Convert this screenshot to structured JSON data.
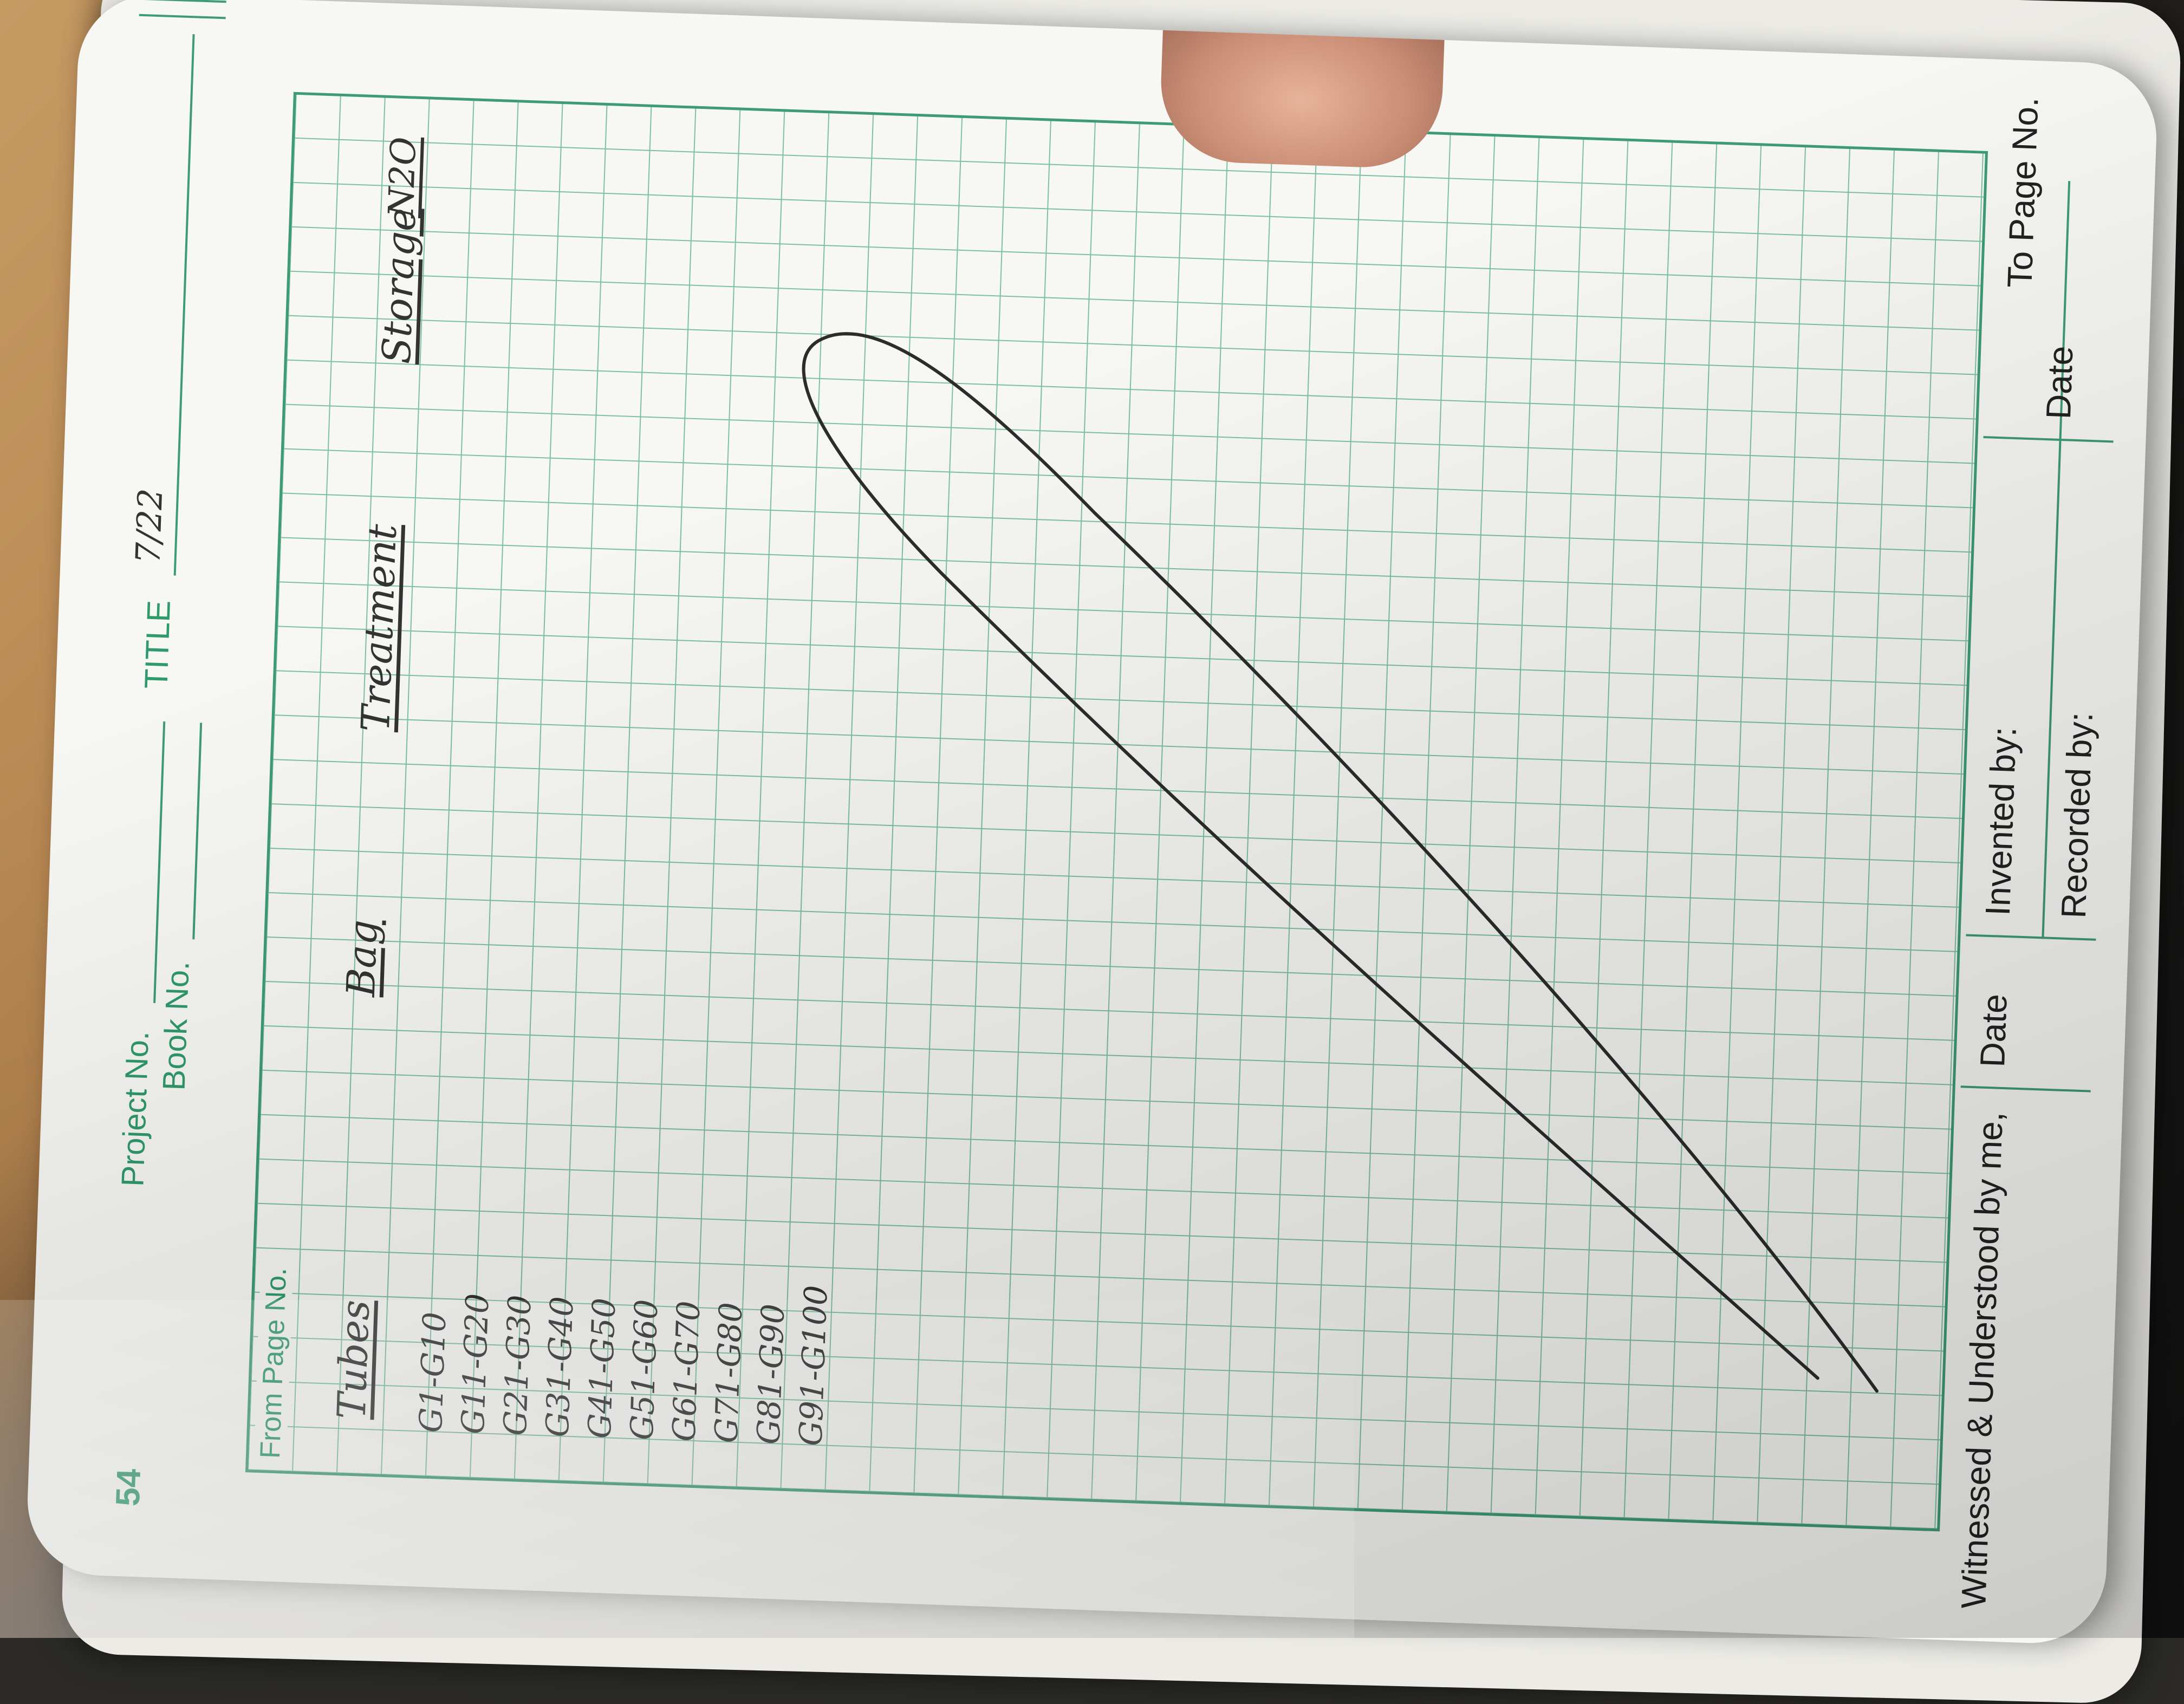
{
  "header": {
    "page_number": "54",
    "project_label": "Project No.",
    "book_label": "Book No.",
    "title_label": "TITLE",
    "title_value": "7/22",
    "from_page_label": "From Page No."
  },
  "columns": {
    "tubes": "Tubes",
    "bag": "Bag",
    "treatment": "Treatment",
    "storage": "Storage",
    "extra": "N2O"
  },
  "tube_ranges": [
    "G1-G10",
    "G11-G20",
    "G21-G30",
    "G31-G40",
    "G41-G50",
    "G51-G60",
    "G61-G70",
    "G71-G80",
    "G81-G90",
    "G91-G100"
  ],
  "footer": {
    "witnessed_label": "Witnessed & Understood by me,",
    "witness_date_label": "Date",
    "invented_label": "Invented by:",
    "recorded_label": "Recorded by:",
    "inventor_date_label": "Date",
    "to_page_label": "To Page No."
  },
  "colors": {
    "grid_green": "#3e9c74",
    "ink": "#333333"
  }
}
